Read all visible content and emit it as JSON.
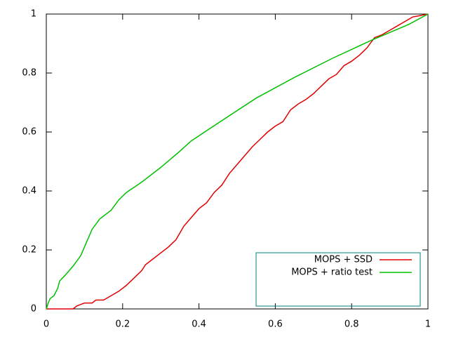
{
  "chart_data": {
    "type": "line",
    "series": [
      {
        "name": "MOPS + SSD",
        "color": "#e00000",
        "x": [
          0,
          0.03,
          0.07,
          0.08,
          0.1,
          0.12,
          0.13,
          0.15,
          0.17,
          0.19,
          0.21,
          0.23,
          0.25,
          0.26,
          0.28,
          0.3,
          0.32,
          0.34,
          0.36,
          0.38,
          0.4,
          0.42,
          0.44,
          0.46,
          0.48,
          0.5,
          0.52,
          0.54,
          0.56,
          0.58,
          0.6,
          0.62,
          0.64,
          0.66,
          0.68,
          0.7,
          0.72,
          0.74,
          0.76,
          0.78,
          0.8,
          0.82,
          0.84,
          0.86,
          0.88,
          0.9,
          0.92,
          0.94,
          0.96,
          0.98,
          1
        ],
        "values": [
          0,
          0,
          0,
          0.01,
          0.02,
          0.02,
          0.03,
          0.03,
          0.045,
          0.06,
          0.08,
          0.105,
          0.13,
          0.15,
          0.17,
          0.19,
          0.21,
          0.235,
          0.28,
          0.31,
          0.34,
          0.36,
          0.395,
          0.42,
          0.46,
          0.49,
          0.52,
          0.55,
          0.575,
          0.6,
          0.62,
          0.635,
          0.675,
          0.695,
          0.71,
          0.73,
          0.755,
          0.78,
          0.795,
          0.825,
          0.84,
          0.86,
          0.885,
          0.92,
          0.93,
          0.945,
          0.96,
          0.975,
          0.99,
          0.995,
          1
        ]
      },
      {
        "name": "MOPS + ratio test",
        "color": "#00c000",
        "x": [
          0,
          0.005,
          0.01,
          0.02,
          0.03,
          0.035,
          0.05,
          0.07,
          0.09,
          0.1,
          0.11,
          0.12,
          0.14,
          0.17,
          0.19,
          0.21,
          0.25,
          0.3,
          0.35,
          0.38,
          0.45,
          0.55,
          0.65,
          0.75,
          0.85,
          0.95,
          1
        ],
        "values": [
          0,
          0.02,
          0.035,
          0.045,
          0.07,
          0.095,
          0.115,
          0.145,
          0.18,
          0.21,
          0.24,
          0.27,
          0.305,
          0.335,
          0.37,
          0.395,
          0.43,
          0.48,
          0.535,
          0.57,
          0.63,
          0.715,
          0.785,
          0.85,
          0.91,
          0.965,
          1
        ]
      }
    ],
    "xlim": [
      0,
      1
    ],
    "xticks": [
      0,
      0.2,
      0.4,
      0.6,
      0.8,
      1
    ],
    "ylim": [
      0,
      1
    ],
    "yticks": [
      0,
      0.2,
      0.4,
      0.6,
      0.8,
      1
    ],
    "legend": "bottom right"
  }
}
